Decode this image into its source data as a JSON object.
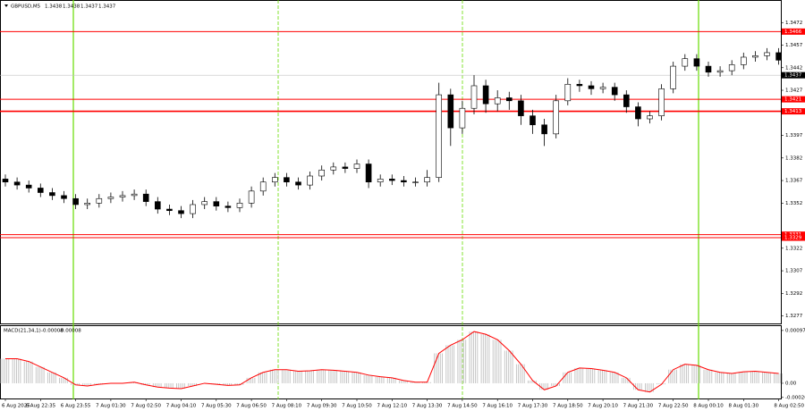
{
  "chart_data": [
    {
      "type": "candlestick",
      "title": "GBPUSD,M5",
      "header_values": [
        1.3438,
        1.3438,
        1.3437,
        1.3437
      ],
      "categories": [
        "6 Aug 2025",
        null,
        null,
        "6 Aug 22:35",
        null,
        null,
        "6 Aug 23:55",
        null,
        null,
        "7 Aug 01:30",
        null,
        null,
        "7 Aug 02:50",
        null,
        null,
        "7 Aug 04:10",
        null,
        null,
        "7 Aug 05:30",
        null,
        null,
        "7 Aug 06:50",
        null,
        null,
        "7 Aug 08:10",
        null,
        null,
        "7 Aug 09:30",
        null,
        null,
        "7 Aug 10:50",
        null,
        null,
        "7 Aug 12:10",
        null,
        null,
        "7 Aug 13:30",
        null,
        null,
        "7 Aug 14:50",
        null,
        null,
        "7 Aug 16:10",
        null,
        null,
        "7 Aug 17:30",
        null,
        null,
        "7 Aug 18:50",
        null,
        null,
        "7 Aug 20:10",
        null,
        null,
        "7 Aug 21:30",
        null,
        null,
        "7 Aug 22:50",
        null,
        null,
        "8 Aug 00:10",
        null,
        null,
        "8 Aug 01:30",
        null,
        null,
        "8 Aug 02:50"
      ],
      "open": [
        1.3368,
        1.3366,
        1.3364,
        1.3362,
        1.3359,
        1.3357,
        1.3355,
        1.3351,
        1.3352,
        1.3355,
        1.3356,
        1.3357,
        1.3358,
        1.3353,
        1.3348,
        1.3347,
        1.3345,
        1.3351,
        1.3353,
        1.335,
        1.3349,
        1.3352,
        1.336,
        1.3366,
        1.3369,
        1.3366,
        1.3364,
        1.337,
        1.3374,
        1.3376,
        1.3375,
        1.3378,
        1.3366,
        1.3368,
        1.3367,
        1.3366,
        1.3366,
        1.3369,
        1.3424,
        1.3402,
        1.3415,
        1.343,
        1.3418,
        1.3422,
        1.342,
        1.341,
        1.3404,
        1.3398,
        1.342,
        1.3431,
        1.343,
        1.3428,
        1.3429,
        1.3424,
        1.3416,
        1.3408,
        1.341,
        1.3428,
        1.3443,
        1.3448,
        1.3443,
        1.3439,
        1.344,
        1.3444,
        1.3449,
        1.345,
        1.3452
      ],
      "high": [
        1.3371,
        1.3369,
        1.3367,
        1.3365,
        1.3362,
        1.336,
        1.3358,
        1.3355,
        1.3358,
        1.3359,
        1.336,
        1.3361,
        1.3361,
        1.3356,
        1.3351,
        1.335,
        1.3354,
        1.3356,
        1.3356,
        1.3353,
        1.3355,
        1.3363,
        1.3369,
        1.3372,
        1.3372,
        1.3369,
        1.3373,
        1.3377,
        1.3379,
        1.3379,
        1.3381,
        1.3381,
        1.3371,
        1.3371,
        1.337,
        1.3369,
        1.3374,
        1.3432,
        1.3428,
        1.342,
        1.3437,
        1.3434,
        1.3427,
        1.3426,
        1.3424,
        1.3414,
        1.3408,
        1.3424,
        1.3435,
        1.3434,
        1.3433,
        1.3432,
        1.3432,
        1.3427,
        1.3419,
        1.3413,
        1.3431,
        1.3446,
        1.3451,
        1.3451,
        1.3446,
        1.3443,
        1.3447,
        1.3452,
        1.3453,
        1.3455,
        1.3455
      ],
      "low": [
        1.3363,
        1.3361,
        1.3359,
        1.3356,
        1.3354,
        1.3352,
        1.3348,
        1.3348,
        1.3349,
        1.3352,
        1.3353,
        1.3354,
        1.335,
        1.3345,
        1.3344,
        1.3342,
        1.3342,
        1.3348,
        1.3347,
        1.3346,
        1.3346,
        1.3349,
        1.3357,
        1.3363,
        1.3363,
        1.3361,
        1.3361,
        1.3367,
        1.3371,
        1.3372,
        1.3372,
        1.3362,
        1.3363,
        1.3364,
        1.3363,
        1.3363,
        1.3363,
        1.3366,
        1.339,
        1.3398,
        1.3411,
        1.3412,
        1.3413,
        1.3414,
        1.3404,
        1.3398,
        1.339,
        1.3395,
        1.3417,
        1.3426,
        1.3424,
        1.3425,
        1.342,
        1.3412,
        1.3403,
        1.3405,
        1.3407,
        1.3425,
        1.344,
        1.344,
        1.3436,
        1.3436,
        1.3437,
        1.3441,
        1.3446,
        1.3447,
        1.3444
      ],
      "close": [
        1.3366,
        1.3364,
        1.3362,
        1.3359,
        1.3357,
        1.3355,
        1.3351,
        1.3352,
        1.3355,
        1.3356,
        1.3357,
        1.3358,
        1.3353,
        1.3348,
        1.3347,
        1.3345,
        1.3351,
        1.3353,
        1.335,
        1.3349,
        1.3352,
        1.336,
        1.3366,
        1.3369,
        1.3366,
        1.3364,
        1.337,
        1.3374,
        1.3376,
        1.3375,
        1.3378,
        1.3366,
        1.3368,
        1.3367,
        1.3366,
        1.3366,
        1.3369,
        1.3424,
        1.3402,
        1.3415,
        1.343,
        1.3418,
        1.3422,
        1.342,
        1.341,
        1.3404,
        1.3398,
        1.342,
        1.3431,
        1.343,
        1.3428,
        1.3429,
        1.3424,
        1.3416,
        1.3408,
        1.341,
        1.3428,
        1.3443,
        1.3448,
        1.3443,
        1.3439,
        1.344,
        1.3444,
        1.3449,
        1.345,
        1.3452,
        1.3447
      ],
      "ylim": [
        1.3272,
        1.3487
      ],
      "yticks": [
        1.3472,
        1.3457,
        1.3442,
        1.3427,
        1.3397,
        1.3382,
        1.3367,
        1.3352,
        1.3322,
        1.3307,
        1.3292,
        1.3277
      ],
      "levels": [
        1.3466,
        1.3421,
        1.3413,
        1.3331,
        1.3329
      ],
      "level_color": "#ff0000",
      "current_price": 1.3437,
      "color": "#000000"
    },
    {
      "type": "macd",
      "title": "MACD(21,34,1)",
      "indicator_values": [
        -8e-05,
        -8e-05
      ],
      "values": [
        0.00045,
        0.00045,
        0.0004,
        0.0003,
        0.0002,
        0.0001,
        -3e-05,
        -5e-05,
        -2e-05,
        0,
        0,
        2e-05,
        -3e-05,
        -7e-05,
        -9e-05,
        -0.0001,
        -5e-05,
        0,
        -2e-05,
        -4e-05,
        -3e-05,
        0.0001,
        0.0002,
        0.00025,
        0.00025,
        0.00022,
        0.00023,
        0.00025,
        0.00024,
        0.00022,
        0.0002,
        0.00015,
        0.00012,
        0.0001,
        5e-05,
        2e-05,
        2e-05,
        0.00055,
        0.0007,
        0.0008,
        0.00095,
        0.0009,
        0.0008,
        0.0006,
        0.00035,
        5e-05,
        -0.00012,
        -5e-05,
        0.0002,
        0.00028,
        0.00027,
        0.00024,
        0.0002,
        0.0001,
        -0.00012,
        -0.00016,
        -2e-05,
        0.00025,
        0.00035,
        0.00033,
        0.00025,
        0.0002,
        0.00018,
        0.00021,
        0.00022,
        0.0002,
        0.00018
      ],
      "ylim": [
        -0.00028,
        0.00105
      ],
      "yticks": [
        0.00097,
        {
          "value": 0,
          "label": "0.00"
        },
        -0.00026
      ],
      "color": "#c0c0c0",
      "line_color": "#ff0000"
    }
  ]
}
